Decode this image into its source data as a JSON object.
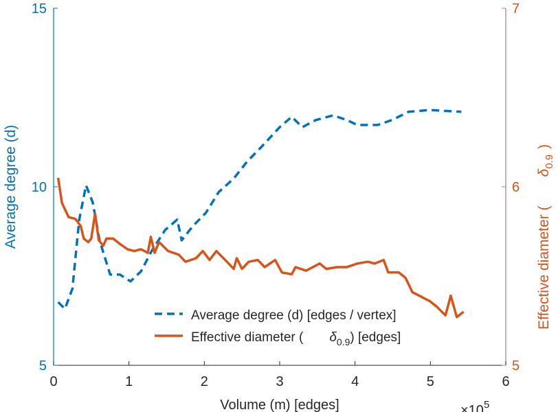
{
  "chart_data": {
    "type": "line",
    "title": "",
    "xlabel": "Volume (m) [edges]",
    "x_exponent_base": "×10",
    "x_exponent_power": "5",
    "xlim": [
      0,
      6
    ],
    "xticks": [
      "0",
      "1",
      "2",
      "3",
      "4",
      "5",
      "6"
    ],
    "ylabel_left": "Average degree (d)",
    "ylim_left": [
      5,
      15
    ],
    "yticks_left": [
      "5",
      "10",
      "15"
    ],
    "ylabel_right_prefix": "Effective diameter (",
    "ylabel_right_symbol": "δ",
    "ylabel_right_sub": "0.9",
    "ylabel_right_suffix": ")",
    "ylim_right": [
      5,
      7
    ],
    "yticks_right": [
      "5",
      "6",
      "7"
    ],
    "grid": false,
    "legend_placement": "bottom-right",
    "colors": {
      "left": "#0072BD",
      "right": "#D95319",
      "right_axis": "#B08070"
    },
    "series": [
      {
        "name": "Average degree (d) [edges / vertex]",
        "axis": "left",
        "style": "dashed",
        "x": [
          0.06,
          0.15,
          0.25,
          0.34,
          0.43,
          0.52,
          0.61,
          0.75,
          0.88,
          1.02,
          1.16,
          1.3,
          1.48,
          1.64,
          1.7,
          1.84,
          2.02,
          2.19,
          2.39,
          2.57,
          2.75,
          3.0,
          3.16,
          3.3,
          3.48,
          3.71,
          3.89,
          4.03,
          4.3,
          4.49,
          4.71,
          4.99,
          5.41
        ],
        "y": [
          6.77,
          6.58,
          7.15,
          9.08,
          10.04,
          9.56,
          8.5,
          7.54,
          7.54,
          7.35,
          7.63,
          8.2,
          8.79,
          9.08,
          8.5,
          8.88,
          9.27,
          9.85,
          10.23,
          10.71,
          11.1,
          11.67,
          11.96,
          11.67,
          11.87,
          12.0,
          11.87,
          11.73,
          11.73,
          11.87,
          12.1,
          12.15,
          12.1
        ]
      },
      {
        "name_prefix": "Effective diameter (",
        "name_symbol": "δ",
        "name_sub": "0.9",
        "name_suffix": ") [edges]",
        "axis": "right",
        "style": "solid",
        "x": [
          0.06,
          0.11,
          0.2,
          0.29,
          0.36,
          0.4,
          0.46,
          0.5,
          0.55,
          0.6,
          0.66,
          0.7,
          0.79,
          0.88,
          0.98,
          1.07,
          1.16,
          1.25,
          1.29,
          1.34,
          1.4,
          1.52,
          1.66,
          1.75,
          1.89,
          1.98,
          2.07,
          2.16,
          2.3,
          2.39,
          2.43,
          2.5,
          2.59,
          2.71,
          2.8,
          2.94,
          3.03,
          3.16,
          3.21,
          3.35,
          3.44,
          3.53,
          3.62,
          3.76,
          3.89,
          4.03,
          4.17,
          4.26,
          4.38,
          4.44,
          4.58,
          4.67,
          4.76,
          4.85,
          4.99,
          5.08,
          5.2,
          5.27,
          5.35,
          5.44
        ],
        "y": [
          6.05,
          5.91,
          5.83,
          5.82,
          5.78,
          5.71,
          5.69,
          5.71,
          5.85,
          5.7,
          5.67,
          5.71,
          5.71,
          5.68,
          5.65,
          5.64,
          5.65,
          5.63,
          5.72,
          5.63,
          5.69,
          5.64,
          5.62,
          5.58,
          5.6,
          5.64,
          5.59,
          5.64,
          5.58,
          5.54,
          5.6,
          5.54,
          5.58,
          5.59,
          5.55,
          5.59,
          5.52,
          5.51,
          5.55,
          5.53,
          5.55,
          5.57,
          5.54,
          5.55,
          5.55,
          5.57,
          5.58,
          5.57,
          5.59,
          5.52,
          5.52,
          5.49,
          5.41,
          5.39,
          5.36,
          5.33,
          5.28,
          5.39,
          5.27,
          5.3
        ]
      }
    ]
  }
}
